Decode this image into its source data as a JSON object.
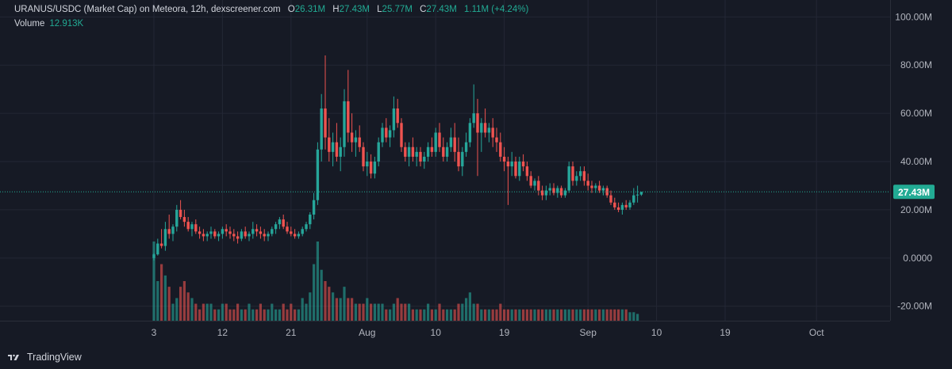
{
  "header": {
    "title": "URANUS/USDC (Market Cap) on Meteora, 12h, dexscreener.com",
    "o_label": "O",
    "o_value": "26.31M",
    "h_label": "H",
    "h_value": "27.43M",
    "l_label": "L",
    "l_value": "25.77M",
    "c_label": "C",
    "c_value": "27.43M",
    "change": "1.11M (+4.24%)"
  },
  "volume": {
    "label": "Volume",
    "value": "12.913K"
  },
  "brand": {
    "name": "TradingView",
    "icon": "tradingview-logo-icon"
  },
  "colors": {
    "bg": "#161a25",
    "up": "#26a69a",
    "down": "#ef5350",
    "text": "#b2b5be",
    "grid": "#232735",
    "last_price": "#22ab94"
  },
  "chart_data": {
    "type": "candlestick",
    "title": "URANUS/USDC (Market Cap) on Meteora, 12h, dexscreener.com",
    "interval": "12h",
    "ylim": [
      -26000000,
      107000000
    ],
    "y_ticks": [
      -20000000,
      0,
      20000000,
      40000000,
      60000000,
      80000000,
      100000000
    ],
    "y_tick_labels": [
      "-20.00M",
      "0.0000",
      "20.00M",
      "40.00M",
      "60.00M",
      "80.00M",
      "100.00M"
    ],
    "x_tick_labels": [
      {
        "label": "3",
        "index": 0
      },
      {
        "label": "12",
        "index": 18
      },
      {
        "label": "21",
        "index": 36
      },
      {
        "label": "Aug",
        "index": 56
      },
      {
        "label": "10",
        "index": 74
      },
      {
        "label": "19",
        "index": 92
      },
      {
        "label": "Sep",
        "index": 114
      },
      {
        "label": "10",
        "index": 132
      },
      {
        "label": "19",
        "index": 150
      },
      {
        "label": "Oct",
        "index": 174
      }
    ],
    "last_price": 27430000,
    "last_price_label": "27.43M",
    "grid": true,
    "series": [
      {
        "name": "Market Cap",
        "kind": "ohlc",
        "values": [
          [
            0,
            2000000,
            -1000000,
            1500000
          ],
          [
            1.5,
            8000000,
            1000000,
            6000000
          ],
          [
            6,
            12000000,
            4000000,
            5000000
          ],
          [
            5,
            15000000,
            3000000,
            12000000
          ],
          [
            12,
            18000000,
            8000000,
            10000000
          ],
          [
            10,
            14000000,
            7000000,
            13000000
          ],
          [
            13,
            22000000,
            11000000,
            20000000
          ],
          [
            20,
            24000000,
            16000000,
            17000000
          ],
          [
            17,
            20000000,
            13000000,
            15000000
          ],
          [
            15,
            17000000,
            11000000,
            12000000
          ],
          [
            12,
            15000000,
            9000000,
            14000000
          ],
          [
            14,
            16000000,
            10000000,
            11000000
          ],
          [
            11,
            13000000,
            8000000,
            10000000
          ],
          [
            10,
            12000000,
            7000000,
            9000000
          ],
          [
            9,
            11000000,
            7000000,
            10000000
          ],
          [
            10,
            13000000,
            8000000,
            11000000
          ],
          [
            11,
            12000000,
            8000000,
            9000000
          ],
          [
            9,
            11000000,
            7000000,
            10000000
          ],
          [
            10,
            13000000,
            8000000,
            12000000
          ],
          [
            12,
            14000000,
            9000000,
            11000000
          ],
          [
            11,
            13000000,
            8000000,
            10000000
          ],
          [
            10,
            12000000,
            7000000,
            9000000
          ],
          [
            9,
            11000000,
            6000000,
            8000000
          ],
          [
            8,
            12000000,
            7000000,
            11000000
          ],
          [
            11,
            13000000,
            8000000,
            9000000
          ],
          [
            9,
            11000000,
            7000000,
            10000000
          ],
          [
            10,
            15000000,
            8000000,
            12000000
          ],
          [
            12,
            14000000,
            9000000,
            11000000
          ],
          [
            11,
            13000000,
            8000000,
            10000000
          ],
          [
            10,
            12000000,
            7000000,
            9000000
          ],
          [
            9,
            11000000,
            7000000,
            10000000
          ],
          [
            10,
            13000000,
            9000000,
            12000000
          ],
          [
            12,
            15000000,
            10000000,
            14000000
          ],
          [
            14,
            17000000,
            12000000,
            16000000
          ],
          [
            16,
            18000000,
            12000000,
            13000000
          ],
          [
            13,
            15000000,
            10000000,
            11000000
          ],
          [
            11,
            13000000,
            9000000,
            10000000
          ],
          [
            10,
            12000000,
            8000000,
            9000000
          ],
          [
            9,
            11000000,
            8000000,
            10000000
          ],
          [
            10,
            13000000,
            9000000,
            12000000
          ],
          [
            12,
            15000000,
            11000000,
            14000000
          ],
          [
            14,
            19000000,
            12000000,
            18000000
          ],
          [
            18,
            27000000,
            16000000,
            24000000
          ],
          [
            24,
            48000000,
            22000000,
            45000000
          ],
          [
            45,
            68000000,
            40000000,
            62000000
          ],
          [
            62,
            84000000,
            45000000,
            50000000
          ],
          [
            50,
            58000000,
            40000000,
            44000000
          ],
          [
            44,
            52000000,
            38000000,
            48000000
          ],
          [
            48,
            56000000,
            40000000,
            42000000
          ],
          [
            42,
            50000000,
            36000000,
            46000000
          ],
          [
            46,
            70000000,
            42000000,
            65000000
          ],
          [
            65,
            78000000,
            48000000,
            52000000
          ],
          [
            52,
            60000000,
            44000000,
            48000000
          ],
          [
            48,
            53000000,
            42000000,
            50000000
          ],
          [
            50,
            55000000,
            44000000,
            46000000
          ],
          [
            46,
            48000000,
            36000000,
            38000000
          ],
          [
            38,
            44000000,
            34000000,
            40000000
          ],
          [
            40,
            43000000,
            33000000,
            35000000
          ],
          [
            35,
            42000000,
            33000000,
            40000000
          ],
          [
            40,
            50000000,
            38000000,
            48000000
          ],
          [
            48,
            56000000,
            46000000,
            54000000
          ],
          [
            54,
            58000000,
            48000000,
            50000000
          ],
          [
            50,
            55000000,
            46000000,
            53000000
          ],
          [
            53,
            67000000,
            50000000,
            62000000
          ],
          [
            62,
            66000000,
            54000000,
            56000000
          ],
          [
            56,
            58000000,
            44000000,
            46000000
          ],
          [
            46,
            48000000,
            40000000,
            42000000
          ],
          [
            42,
            48000000,
            38000000,
            46000000
          ],
          [
            46,
            50000000,
            40000000,
            42000000
          ],
          [
            42,
            46000000,
            38000000,
            44000000
          ],
          [
            44,
            46000000,
            38000000,
            40000000
          ],
          [
            40,
            44000000,
            37000000,
            42000000
          ],
          [
            42,
            48000000,
            40000000,
            46000000
          ],
          [
            46,
            50000000,
            42000000,
            44000000
          ],
          [
            44,
            54000000,
            42000000,
            52000000
          ],
          [
            52,
            56000000,
            44000000,
            46000000
          ],
          [
            46,
            50000000,
            40000000,
            42000000
          ],
          [
            42,
            48000000,
            40000000,
            46000000
          ],
          [
            46,
            54000000,
            44000000,
            50000000
          ],
          [
            50,
            56000000,
            40000000,
            44000000
          ],
          [
            44,
            50000000,
            36000000,
            38000000
          ],
          [
            38,
            46000000,
            34000000,
            44000000
          ],
          [
            44,
            52000000,
            42000000,
            48000000
          ],
          [
            48,
            58000000,
            46000000,
            56000000
          ],
          [
            56,
            72000000,
            54000000,
            60000000
          ],
          [
            60,
            66000000,
            34000000,
            52000000
          ],
          [
            52,
            58000000,
            44000000,
            56000000
          ],
          [
            56,
            62000000,
            50000000,
            52000000
          ],
          [
            52,
            56000000,
            48000000,
            54000000
          ],
          [
            54,
            58000000,
            46000000,
            50000000
          ],
          [
            50,
            54000000,
            44000000,
            48000000
          ],
          [
            48,
            52000000,
            40000000,
            42000000
          ],
          [
            42,
            46000000,
            36000000,
            40000000
          ],
          [
            40,
            42000000,
            22000000,
            38000000
          ],
          [
            38,
            44000000,
            34000000,
            40000000
          ],
          [
            40,
            42000000,
            33000000,
            34000000
          ],
          [
            34,
            42000000,
            32000000,
            40000000
          ],
          [
            40,
            43000000,
            36000000,
            38000000
          ],
          [
            38,
            40000000,
            32000000,
            34000000
          ],
          [
            34,
            36000000,
            29000000,
            30000000
          ],
          [
            30,
            33000000,
            28000000,
            32000000
          ],
          [
            32,
            34000000,
            26000000,
            28000000
          ],
          [
            28,
            30000000,
            24000000,
            26000000
          ],
          [
            26,
            30000000,
            24000000,
            28000000
          ],
          [
            28,
            31000000,
            26000000,
            29000000
          ],
          [
            29,
            31000000,
            26000000,
            27000000
          ],
          [
            27,
            30000000,
            25000000,
            29000000
          ],
          [
            29,
            30000000,
            25000000,
            26000000
          ],
          [
            26,
            29000000,
            25000000,
            28000000
          ],
          [
            28,
            40000000,
            27000000,
            38000000
          ],
          [
            38,
            40000000,
            30000000,
            32000000
          ],
          [
            32,
            36000000,
            30000000,
            34000000
          ],
          [
            34,
            38000000,
            32000000,
            36000000
          ],
          [
            36,
            38000000,
            30000000,
            32000000
          ],
          [
            32,
            35000000,
            28000000,
            30000000
          ],
          [
            30,
            32000000,
            27000000,
            29000000
          ],
          [
            29,
            31000000,
            27000000,
            30000000
          ],
          [
            30,
            32000000,
            27000000,
            28000000
          ],
          [
            28,
            30000000,
            26000000,
            29000000
          ],
          [
            29,
            30000000,
            25000000,
            26000000
          ],
          [
            26,
            28000000,
            22000000,
            23000000
          ],
          [
            23,
            25000000,
            20000000,
            21000000
          ],
          [
            21,
            23000000,
            19000000,
            20000000
          ],
          [
            20,
            23000000,
            18000000,
            22000000
          ],
          [
            22,
            24000000,
            20000000,
            21000000
          ],
          [
            21,
            24000000,
            20000000,
            23000000
          ],
          [
            23,
            29000000,
            22000000,
            26000000
          ],
          [
            26,
            30000000,
            23000000,
            26300000
          ],
          [
            26.31,
            27430000,
            25770000,
            27430000
          ]
        ]
      }
    ],
    "volume_series": [
      {
        "name": "Volume",
        "values": [
          14,
          7,
          10,
          8,
          6,
          3,
          4,
          6,
          7,
          5,
          4,
          3,
          2,
          3,
          3,
          3,
          2,
          2,
          3,
          3,
          2,
          2,
          3,
          2,
          2,
          3,
          2,
          2,
          3,
          2,
          2,
          3,
          2,
          2,
          3,
          2,
          3,
          2,
          2,
          4,
          3,
          5,
          10,
          14,
          9,
          7,
          6,
          5,
          4,
          4,
          6,
          4,
          4,
          3,
          3,
          3,
          4,
          3,
          3,
          3,
          3,
          2,
          2,
          3,
          4,
          3,
          3,
          3,
          2,
          2,
          2,
          2,
          3,
          2,
          2,
          3,
          2,
          2,
          2,
          2,
          3,
          3,
          4,
          5,
          3,
          3,
          2,
          2,
          2,
          2,
          2,
          3,
          2,
          2,
          2,
          2,
          2,
          2,
          2,
          2,
          2,
          2,
          2,
          2,
          2,
          2,
          2,
          2,
          2,
          2,
          2,
          2,
          2,
          2,
          2,
          2,
          2,
          2,
          2,
          2,
          2,
          2,
          2,
          2,
          2,
          1.5,
          1.5,
          1.2
        ]
      }
    ]
  }
}
